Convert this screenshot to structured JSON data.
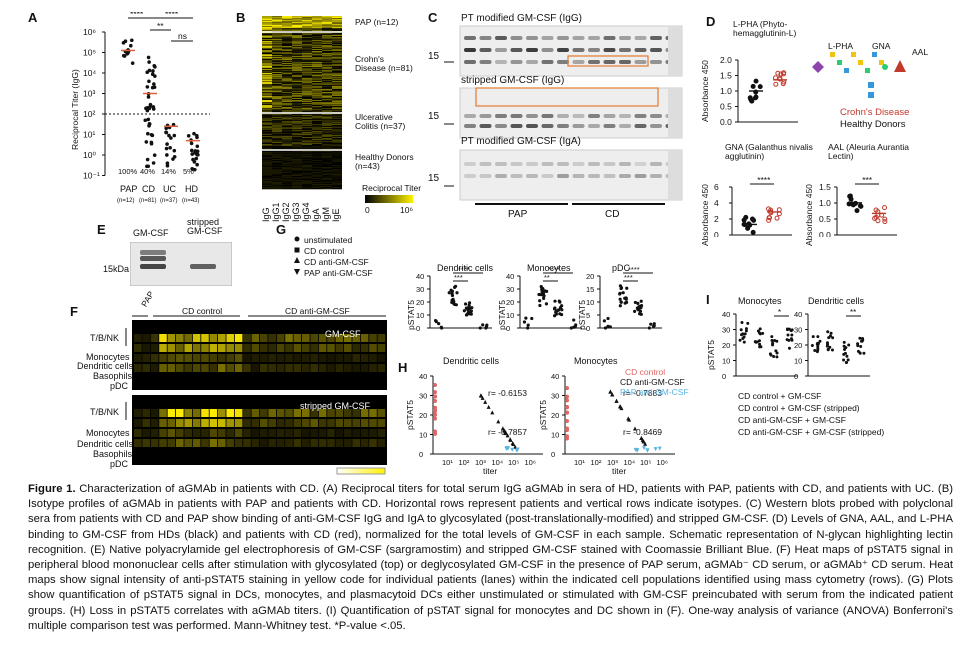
{
  "panels": {
    "A": "A",
    "B": "B",
    "C": "C",
    "D": "D",
    "E": "E",
    "F": "F",
    "G": "G",
    "H": "H",
    "I": "I"
  },
  "panelA": {
    "ylabel": "Reciprocal Titer (IgG)",
    "yticks": [
      "10⁶",
      "10⁵",
      "10⁴",
      "10³",
      "10²",
      "10¹",
      "10⁰",
      "10⁻¹"
    ],
    "groups": [
      {
        "name": "PAP",
        "n": "(n=12)",
        "pct": "100%"
      },
      {
        "name": "CD",
        "n": "(n=81)",
        "pct": "40%"
      },
      {
        "name": "UC",
        "n": "(n=37)",
        "pct": "14%"
      },
      {
        "name": "HD",
        "n": "(n=43)",
        "pct": "5%"
      }
    ],
    "sig": [
      "****",
      "****",
      "**",
      "ns"
    ]
  },
  "panelB": {
    "isotypes": [
      "IgG",
      "IgG1",
      "IgG2",
      "IgG3",
      "IgG4",
      "IgA",
      "IgM",
      "IgE"
    ],
    "groups": [
      "PAP (n=12)",
      "Crohn's Disease (n=81)",
      "Ulcerative Colitis (n=37)",
      "Healthy Donors (n=43)"
    ],
    "scale_title": "Reciprocal Titer",
    "scale_min": "0",
    "scale_max": "10⁶"
  },
  "panelC": {
    "blot1": "PT modified GM-CSF (IgG)",
    "blot2": "stripped GM-CSF (IgG)",
    "blot3": "PT modified GM-CSF (IgA)",
    "marker": "15",
    "groupA": "PAP",
    "groupB": "CD"
  },
  "panelD": {
    "lpha_title": "L-PHA (Phyto-hemagglutinin-L)",
    "gna_title": "GNA (Galanthus nivalis agglutinin)",
    "aal_title": "AAL (Aleuria Aurantia Lectin)",
    "ylabel": "Absorbance 450",
    "lpha_sig": "",
    "gna_sig": "****",
    "aal_sig": "***",
    "lpha_ticks": [
      "2.0",
      "1.5",
      "1.0",
      "0.5",
      "0.0"
    ],
    "gna_ticks": [
      "6",
      "4",
      "2",
      "0"
    ],
    "aal_ticks": [
      "1.5",
      "1.0",
      "0.5",
      "0.0"
    ],
    "schema_lpha": "L-PHA",
    "schema_gna": "GNA",
    "schema_aal": "AAL",
    "legend_cd": "Crohn's Disease",
    "legend_hd": "Healthy Donors",
    "cd_color": "#c0392b",
    "hd_color": "#111111"
  },
  "panelE": {
    "lane1": "GM-CSF",
    "lane2": "stripped GM-CSF",
    "marker": "15kDa"
  },
  "panelF": {
    "col_pap": "PAP",
    "col_cd": "CD control",
    "col_cdanti": "CD anti-GM-CSF",
    "top_title": "GM-CSF",
    "bottom_title": "stripped GM-CSF",
    "rows": [
      "T/B/NK",
      "Monocytes",
      "Dendritic cells",
      "Basophils",
      "pDC"
    ]
  },
  "panelG": {
    "legend": [
      "unstimulated",
      "CD control",
      "CD anti-GM-CSF",
      "PAP anti-GM-CSF"
    ],
    "plots": [
      {
        "title": "Dendritic cells",
        "sig1": "****",
        "sig2": "***",
        "ticks": [
          "40",
          "30",
          "20",
          "10",
          "0"
        ]
      },
      {
        "title": "Monocytes",
        "sig1": "****",
        "sig2": "**",
        "ticks": [
          "40",
          "30",
          "20",
          "10",
          "0"
        ]
      },
      {
        "title": "pDC",
        "sig1": "****",
        "sig2": "***",
        "ticks": [
          "20",
          "15",
          "10",
          "5",
          "0"
        ]
      }
    ],
    "ylabel": "pSTAT5"
  },
  "panelH": {
    "plots": [
      {
        "title": "Dendritic cells",
        "r1": "r= -0.6153",
        "r2": "r= -0.7857"
      },
      {
        "title": "Monocytes",
        "r1": "r= -0.7883",
        "r2": "r= -0.8469"
      }
    ],
    "legend": [
      "CD control",
      "CD anti-GM-CSF",
      "PAP anti-GM-CSF"
    ],
    "legend_colors": [
      "#e06666",
      "#111111",
      "#5ab4e0"
    ],
    "xlabel": "titer",
    "ylabel": "pSTAT5",
    "xticks": [
      "10¹",
      "10²",
      "10³",
      "10⁴",
      "10⁵",
      "10⁶"
    ],
    "yticks": [
      "40",
      "30",
      "20",
      "10",
      "0"
    ]
  },
  "panelI": {
    "plots": [
      {
        "title": "Monocytes",
        "sig": "*"
      },
      {
        "title": "Dendritic cells",
        "sig": "**"
      }
    ],
    "ylabel": "pSTAT5",
    "ticks": [
      "40",
      "30",
      "20",
      "10",
      "0"
    ],
    "legend": [
      "CD control + GM-CSF",
      "CD control + GM-CSF (stripped)",
      "CD anti-GM-CSF + GM-CSF",
      "CD anti-GM-CSF + GM-CSF (stripped)"
    ]
  },
  "caption": {
    "title": "Figure 1.",
    "body": "Characterization of aGMAb in patients with CD. (A) Reciprocal titers for total serum IgG aGMAb in sera of HD, patients with PAP, patients with CD, and patients with UC. (B) Isotype profiles of aGMAb in patients with PAP and patients with CD. Horizontal rows represent patients and vertical rows indicate isotypes. (C) Western blots probed with polyclonal sera from patients with CD and PAP show binding of anti-GM-CSF IgG and IgA to glycosylated (post-translationally-modified) and stripped GM-CSF. (D) Levels of GNA, AAL, and L-PHA binding to GM-CSF from HDs (black) and patients with CD (red), normalized for the total levels of GM-CSF in each sample. Schematic representation of N-glycan highlighting lectin recognition. (E) Native polyacrylamide gel electrophoresis of GM-CSF (sargramostim) and stripped GM-CSF stained with Coomassie Brilliant Blue. (F) Heat maps of pSTAT5 signal in peripheral blood mononuclear cells after stimulation with glycosylated (top) or deglycosylated GM-CSF in the presence of PAP serum, aGMAb⁻ CD serum, or aGMAb⁺ CD serum. Heat maps show signal intensity of anti-pSTAT5 staining in yellow code for individual patients (lanes) within the indicated cell populations identified using mass cytometry (rows). (G) Plots show quantification of pSTAT5 signal in DCs, monocytes, and plasmacytoid DCs either unstimulated or stimulated with GM-CSF preincubated with serum from the indicated patient groups. (H) Loss in pSTAT5 correlates with aGMAb titers. (I) Quantification of pSTAT signal for monocytes and DC shown in (F). One-way analysis of variance (ANOVA) Bonferroni's multiple comparison test was performed. Mann-Whitney test. *P-value <.05."
  }
}
